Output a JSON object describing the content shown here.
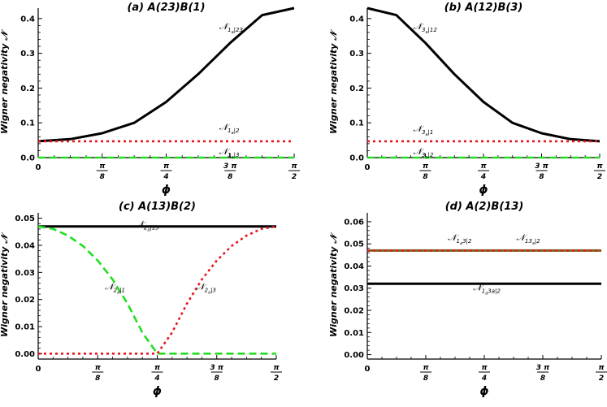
{
  "chart_data": [
    {
      "type": "line",
      "title": "(a) A(23)B(1)",
      "xlabel": "ϕ",
      "ylabel": "Wigner negativity 𝒩",
      "xlim": [
        0,
        1.5708
      ],
      "ylim": [
        0,
        0.43
      ],
      "xticks": [
        0,
        0.3927,
        0.7854,
        1.1781,
        1.5708
      ],
      "xtick_labels": [
        {
          "main": "0",
          "num": "",
          "den": ""
        },
        {
          "main": "",
          "num": "π",
          "den": "8"
        },
        {
          "main": "",
          "num": "π",
          "den": "4"
        },
        {
          "main": "",
          "num": "3 π",
          "den": "8"
        },
        {
          "main": "",
          "num": "π",
          "den": "2"
        }
      ],
      "yticks": [
        0.0,
        0.1,
        0.2,
        0.3,
        0.4
      ],
      "ytick_labels": [
        "0.0",
        "0.1",
        "0.2",
        "0.3",
        "0.4"
      ],
      "grid": false,
      "series": [
        {
          "name": "𝒩1a|23",
          "style": "solid",
          "color": "#000000",
          "x": [
            0,
            0.1963,
            0.3927,
            0.589,
            0.7854,
            0.9817,
            1.1781,
            1.3744,
            1.5708
          ],
          "y": [
            0.047,
            0.053,
            0.07,
            0.1,
            0.16,
            0.24,
            0.33,
            0.41,
            0.43
          ]
        },
        {
          "name": "𝒩1a|2",
          "style": "dotted",
          "color": "#e8141e",
          "x": [
            0,
            1.5708
          ],
          "y": [
            0.047,
            0.047
          ]
        },
        {
          "name": "𝒩1a|3",
          "style": "dashed",
          "color": "#22dd22",
          "x": [
            0,
            1.5708
          ],
          "y": [
            0.0,
            0.0
          ]
        }
      ],
      "annotations": [
        {
          "main": "𝒩",
          "sub": "1",
          "subsub": "a",
          "rest": "|23",
          "x": 1.11,
          "y": 0.36
        },
        {
          "main": "𝒩",
          "sub": "1",
          "subsub": "a",
          "rest": "|2",
          "x": 1.11,
          "y": 0.07
        },
        {
          "main": "𝒩",
          "sub": "1",
          "subsub": "a",
          "rest": "|3",
          "x": 1.11,
          "y": 0.0
        }
      ]
    },
    {
      "type": "line",
      "title": "(b) A(12)B(3)",
      "xlabel": "ϕ",
      "ylabel": "Wigner negativity 𝒩",
      "xlim": [
        0,
        1.5708
      ],
      "ylim": [
        0,
        0.43
      ],
      "xticks": [
        0,
        0.3927,
        0.7854,
        1.1781,
        1.5708
      ],
      "xtick_labels": [
        {
          "main": "0",
          "num": "",
          "den": ""
        },
        {
          "main": "",
          "num": "π",
          "den": "8"
        },
        {
          "main": "",
          "num": "π",
          "den": "4"
        },
        {
          "main": "",
          "num": "3 π",
          "den": "8"
        },
        {
          "main": "",
          "num": "π",
          "den": "2"
        }
      ],
      "yticks": [
        0.0,
        0.1,
        0.2,
        0.3,
        0.4
      ],
      "ytick_labels": [
        "0.0",
        "0.1",
        "0.2",
        "0.3",
        "0.4"
      ],
      "grid": false,
      "series": [
        {
          "name": "𝒩3a|12",
          "style": "solid",
          "color": "#000000",
          "x": [
            0,
            0.1963,
            0.3927,
            0.589,
            0.7854,
            0.9817,
            1.1781,
            1.3744,
            1.5708
          ],
          "y": [
            0.43,
            0.41,
            0.33,
            0.24,
            0.16,
            0.1,
            0.07,
            0.053,
            0.047
          ]
        },
        {
          "name": "𝒩3a|1",
          "style": "dotted",
          "color": "#e8141e",
          "x": [
            0,
            1.5708
          ],
          "y": [
            0.047,
            0.047
          ]
        },
        {
          "name": "𝒩3a|2",
          "style": "dashed",
          "color": "#22dd22",
          "x": [
            0,
            1.5708
          ],
          "y": [
            0.0,
            0.0
          ]
        }
      ],
      "annotations": [
        {
          "main": "𝒩",
          "sub": "3",
          "subsub": "a",
          "rest": "|12",
          "x": 0.31,
          "y": 0.36
        },
        {
          "main": "𝒩",
          "sub": "3",
          "subsub": "a",
          "rest": "|1",
          "x": 0.31,
          "y": 0.065
        },
        {
          "main": "𝒩",
          "sub": "3",
          "subsub": "a",
          "rest": "|2",
          "x": 0.31,
          "y": 0.0
        }
      ]
    },
    {
      "type": "line",
      "title": "(c) A(13)B(2)",
      "xlabel": "ϕ",
      "ylabel": "Wigner negativity 𝒩",
      "xlim": [
        0,
        1.5708
      ],
      "ylim": [
        -0.002,
        0.052
      ],
      "xticks": [
        0,
        0.3927,
        0.7854,
        1.1781,
        1.5708
      ],
      "xtick_labels": [
        {
          "main": "0",
          "num": "",
          "den": ""
        },
        {
          "main": "",
          "num": "π",
          "den": "8"
        },
        {
          "main": "",
          "num": "π",
          "den": "4"
        },
        {
          "main": "",
          "num": "3 π",
          "den": "8"
        },
        {
          "main": "",
          "num": "π",
          "den": "2"
        }
      ],
      "yticks": [
        0.0,
        0.01,
        0.02,
        0.03,
        0.04,
        0.05
      ],
      "ytick_labels": [
        "0.00",
        "0.01",
        "0.02",
        "0.03",
        "0.04",
        "0.05"
      ],
      "grid": false,
      "series": [
        {
          "name": "𝒩2a|13",
          "style": "solid",
          "color": "#000000",
          "x": [
            0,
            1.5708
          ],
          "y": [
            0.047,
            0.047
          ]
        },
        {
          "name": "𝒩2a|1",
          "style": "dashed",
          "color": "#22dd22",
          "x": [
            0,
            0.0982,
            0.1963,
            0.2945,
            0.3927,
            0.4909,
            0.589,
            0.6872,
            0.7854,
            0.85,
            1.0,
            1.2,
            1.4,
            1.5708
          ],
          "y": [
            0.047,
            0.0461,
            0.0436,
            0.0398,
            0.0344,
            0.0274,
            0.0185,
            0.0078,
            0.0,
            0.0,
            0.0,
            0.0,
            0.0,
            0.0
          ]
        },
        {
          "name": "𝒩2a|3",
          "style": "dotted",
          "color": "#e8141e",
          "x": [
            0,
            0.2,
            0.4,
            0.6,
            0.7854,
            0.8836,
            0.9817,
            1.0799,
            1.1781,
            1.2763,
            1.3744,
            1.4726,
            1.5708
          ],
          "y": [
            0.0,
            0.0,
            0.0,
            0.0,
            0.0,
            0.0078,
            0.0185,
            0.0274,
            0.0344,
            0.0398,
            0.0436,
            0.0461,
            0.047
          ]
        }
      ],
      "annotations": [
        {
          "main": "𝒩",
          "sub": "2",
          "subsub": "a",
          "rest": "|13",
          "x": 0.64,
          "y": 0.0455
        },
        {
          "main": "𝒩",
          "sub": "2",
          "subsub": "a",
          "rest": "|1",
          "x": 0.44,
          "y": 0.0225
        },
        {
          "main": "𝒩",
          "sub": "2",
          "subsub": "a",
          "rest": "|3",
          "x": 1.04,
          "y": 0.0225
        }
      ]
    },
    {
      "type": "line",
      "title": "(d) A(2)B(13)",
      "xlabel": "ϕ",
      "ylabel": "Wigner negativity 𝒩",
      "xlim": [
        0,
        1.5708
      ],
      "ylim": [
        -0.002,
        0.064
      ],
      "xticks": [
        0,
        0.3927,
        0.7854,
        1.1781,
        1.5708
      ],
      "xtick_labels": [
        {
          "main": "0",
          "num": "",
          "den": ""
        },
        {
          "main": "",
          "num": "π",
          "den": "8"
        },
        {
          "main": "",
          "num": "π",
          "den": "4"
        },
        {
          "main": "",
          "num": "3 π",
          "den": "8"
        },
        {
          "main": "",
          "num": "π",
          "den": "2"
        }
      ],
      "yticks": [
        0.0,
        0.01,
        0.02,
        0.03,
        0.04,
        0.05,
        0.06
      ],
      "ytick_labels": [
        "0.00",
        "0.01",
        "0.02",
        "0.03",
        "0.04",
        "0.05",
        "0.06"
      ],
      "grid": false,
      "series": [
        {
          "name": "𝒩13a|2",
          "style": "solid",
          "color": "#6b6b1e",
          "x": [
            0,
            1.5708
          ],
          "y": [
            0.047,
            0.047
          ]
        },
        {
          "name": "𝒩1a3|2",
          "style": "dotted",
          "color": "#e8141e",
          "x": [
            0,
            1.5708
          ],
          "y": [
            0.047,
            0.047
          ]
        },
        {
          "name": "𝒩1a3a|2",
          "style": "solid",
          "color": "#000000",
          "x": [
            0,
            1.5708
          ],
          "y": [
            0.032,
            0.032
          ]
        }
      ],
      "annotations": [
        {
          "main": "𝒩",
          "sub": "1",
          "subsub": "a",
          "rest": "3|2",
          "x": 0.54,
          "y": 0.05
        },
        {
          "main": "𝒩",
          "sub": "13",
          "subsub": "a",
          "rest": "|2",
          "x": 1.0,
          "y": 0.05
        },
        {
          "main": "𝒩",
          "sub": "1",
          "subsub": "a",
          "rest": "3a|2",
          "x": 0.71,
          "y": 0.0275
        }
      ]
    }
  ]
}
